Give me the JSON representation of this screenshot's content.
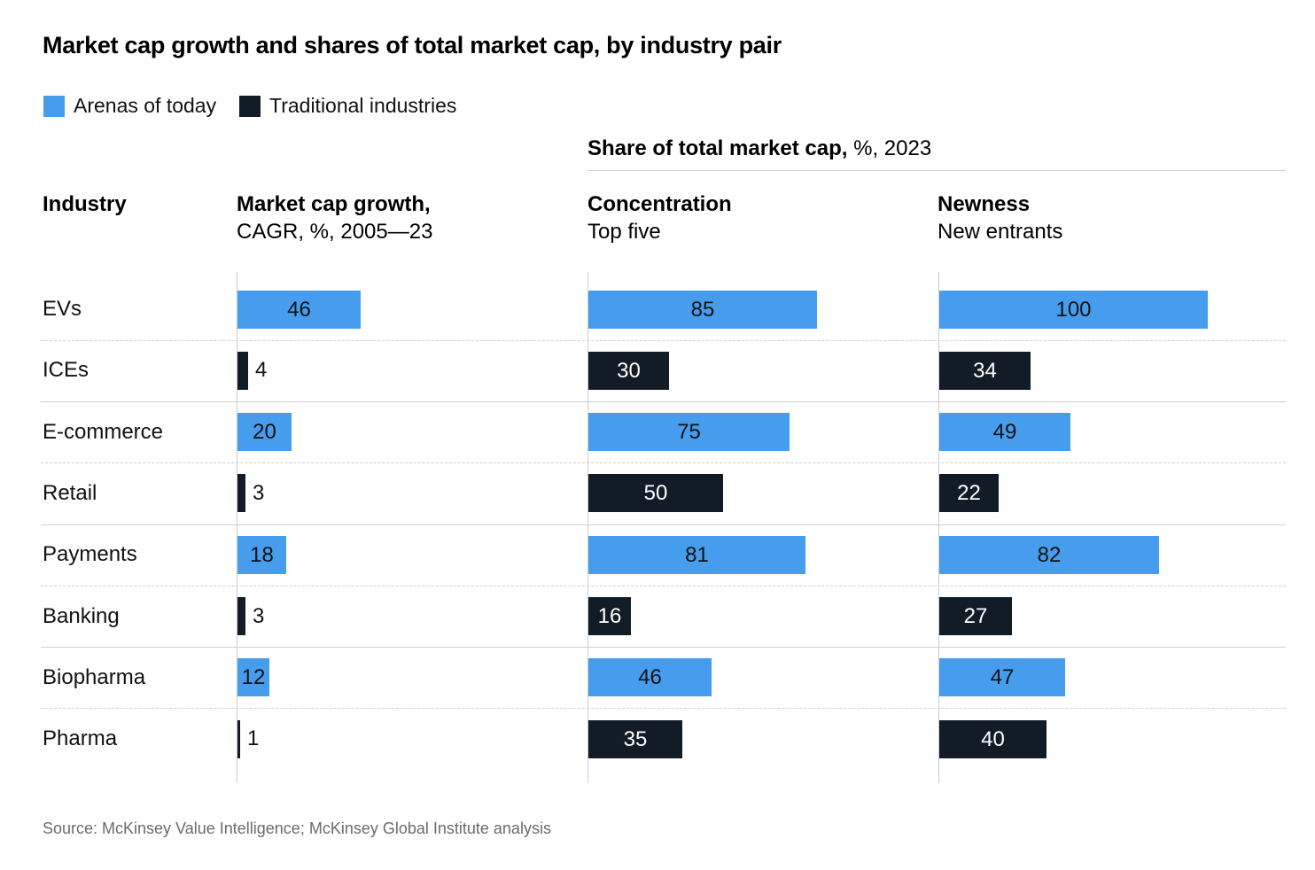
{
  "title": "Market cap growth and shares of total market cap, by industry pair",
  "legend": [
    {
      "label": "Arenas of today",
      "color": "#469ded",
      "key": "arena"
    },
    {
      "label": "Traditional industries",
      "color": "#111c27",
      "key": "traditional"
    }
  ],
  "share_header": {
    "bold": "Share of total market cap,",
    "rest": " %, 2023"
  },
  "columns": {
    "industry": {
      "title": "Industry"
    },
    "growth": {
      "title": "Market cap growth,",
      "subtitle": "CAGR, %, 2005—23"
    },
    "concentration": {
      "title": "Concentration",
      "subtitle": "Top five"
    },
    "newness": {
      "title": "Newness",
      "subtitle": "New entrants"
    }
  },
  "source": "Source: McKinsey Value Intelligence; McKinsey Global Institute analysis",
  "chart_data": {
    "type": "bar",
    "orientation": "horizontal",
    "title": "Market cap growth and shares of total market cap, by industry pair",
    "categories": [
      "EVs",
      "ICEs",
      "E-commerce",
      "Retail",
      "Payments",
      "Banking",
      "Biopharma",
      "Pharma"
    ],
    "category_type": [
      "arena",
      "traditional",
      "arena",
      "traditional",
      "arena",
      "traditional",
      "arena",
      "traditional"
    ],
    "pairs": [
      [
        "EVs",
        "ICEs"
      ],
      [
        "E-commerce",
        "Retail"
      ],
      [
        "Payments",
        "Banking"
      ],
      [
        "Biopharma",
        "Pharma"
      ]
    ],
    "series": [
      {
        "name": "Market cap growth, CAGR, %, 2005—23",
        "key": "growth",
        "values": [
          46,
          4,
          20,
          3,
          18,
          3,
          12,
          1
        ]
      },
      {
        "name": "Concentration, Top five, % share of total market cap, 2023",
        "key": "concentration",
        "values": [
          85,
          30,
          75,
          50,
          81,
          16,
          46,
          35
        ]
      },
      {
        "name": "Newness, New entrants, % share of total market cap, 2023",
        "key": "newness",
        "values": [
          100,
          34,
          49,
          22,
          82,
          27,
          47,
          40
        ]
      }
    ],
    "xlim": [
      0,
      100
    ],
    "grid": false,
    "legend_position": "top-left",
    "xlabel": "",
    "ylabel": "Industry"
  }
}
